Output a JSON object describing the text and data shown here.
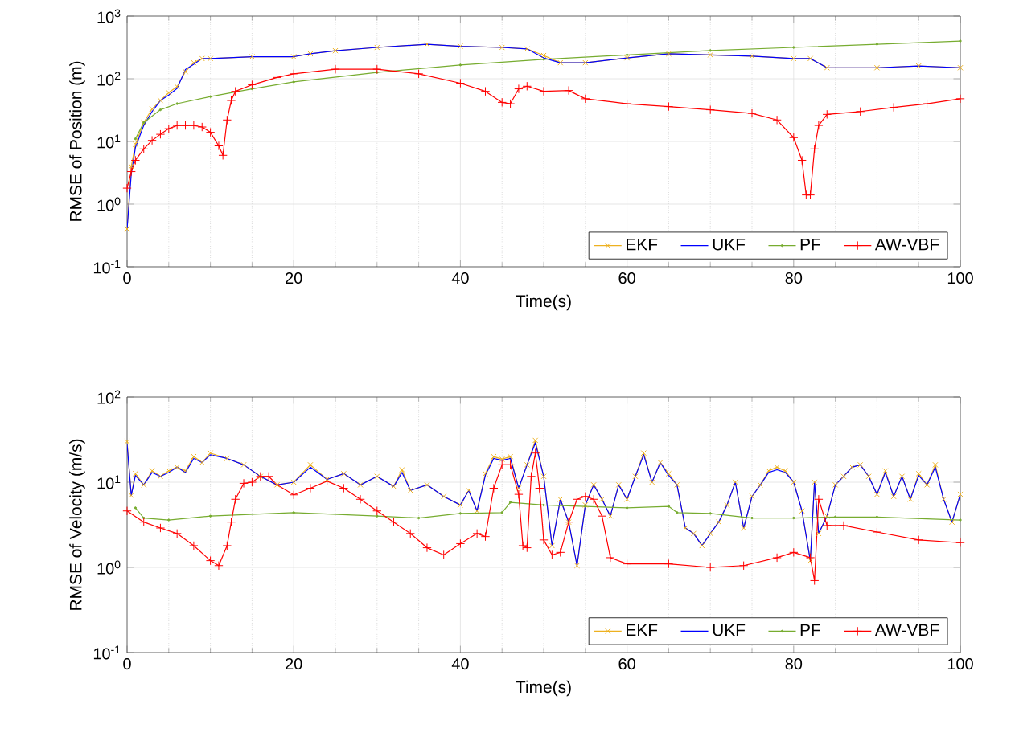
{
  "chart_data": [
    {
      "type": "line",
      "xlabel": "Time(s)",
      "ylabel": "RMSE of Position (m)",
      "log": "y",
      "grid": true,
      "legend": "bottom right",
      "xlim": [
        0,
        100
      ],
      "xticks": [
        0,
        20,
        40,
        60,
        80,
        100
      ],
      "ylim": [
        0.1,
        1000
      ],
      "yticks": [
        {
          "value": 0.1,
          "label": "10$^{-1}$"
        },
        {
          "value": 1,
          "label": "10$^{0}$"
        },
        {
          "value": 10,
          "label": "10$^{1}$"
        },
        {
          "value": 100,
          "label": "10$^{2}$"
        },
        {
          "value": 1000,
          "label": "10$^{3}$"
        }
      ],
      "series": [
        {
          "name": "EKF",
          "color": "#edb120",
          "marker": "cross",
          "x": [
            0,
            0.5,
            1,
            2,
            3,
            4,
            5,
            6,
            7,
            8,
            9,
            10,
            15,
            20,
            22,
            25,
            30,
            36,
            40,
            45,
            48,
            50,
            52,
            55,
            60,
            65,
            70,
            75,
            80,
            82,
            84,
            90,
            95,
            100
          ],
          "values": [
            0.4,
            4,
            9,
            20,
            33,
            45,
            60,
            75,
            130,
            180,
            210,
            210,
            225,
            225,
            250,
            280,
            316,
            355,
            330,
            316,
            300,
            235,
            180,
            180,
            215,
            250,
            240,
            230,
            210,
            210,
            150,
            150,
            160,
            150
          ]
        },
        {
          "name": "UKF",
          "color": "#0000ff",
          "marker": "none",
          "x": [
            0,
            0.5,
            1,
            2,
            3,
            4,
            5,
            6,
            7,
            8,
            9,
            10,
            15,
            20,
            22,
            25,
            30,
            36,
            40,
            45,
            48,
            50,
            52,
            55,
            60,
            65,
            70,
            75,
            80,
            82,
            84,
            90,
            95,
            100
          ],
          "values": [
            0.4,
            3,
            8,
            18,
            30,
            45,
            55,
            70,
            140,
            170,
            210,
            210,
            225,
            225,
            250,
            280,
            316,
            355,
            330,
            316,
            300,
            215,
            180,
            180,
            215,
            250,
            240,
            230,
            210,
            210,
            150,
            150,
            160,
            150
          ]
        },
        {
          "name": "PF",
          "color": "#77ac30",
          "marker": "circle",
          "x": [
            1,
            2,
            4,
            6,
            10,
            15,
            20,
            30,
            40,
            50,
            60,
            70,
            80,
            90,
            100
          ],
          "values": [
            11,
            20,
            32,
            40,
            52,
            69,
            89,
            126,
            166,
            204,
            240,
            282,
            316,
            355,
            400
          ]
        },
        {
          "name": "AW-VBF",
          "color": "#ff0000",
          "marker": "plus",
          "x": [
            0,
            0.5,
            1,
            2,
            3,
            4,
            5,
            6,
            7,
            8,
            9,
            10,
            11,
            11.5,
            12,
            12.5,
            13,
            15,
            18,
            20,
            25,
            30,
            35,
            40,
            43,
            45,
            46,
            47,
            48,
            50,
            53,
            55,
            60,
            65,
            70,
            75,
            78,
            80,
            81,
            81.5,
            82,
            82.5,
            83,
            84,
            88,
            92,
            96,
            100
          ],
          "values": [
            1.8,
            3.3,
            5,
            7.6,
            10.4,
            13,
            16,
            18,
            18,
            18,
            17,
            14,
            8.5,
            6,
            22,
            45,
            63,
            80,
            105,
            120,
            142,
            142,
            120,
            85,
            63,
            42,
            40,
            69,
            76,
            63,
            65,
            48,
            40,
            36,
            32,
            28,
            22,
            11.5,
            5,
            1.4,
            1.4,
            7.6,
            18,
            27,
            30,
            35,
            40,
            48
          ]
        }
      ]
    },
    {
      "type": "line",
      "xlabel": "Time(s)",
      "ylabel": "RMSE of Velocity (m/s)",
      "log": "y",
      "grid": true,
      "legend": "bottom right",
      "xlim": [
        0,
        100
      ],
      "xticks": [
        0,
        20,
        40,
        60,
        80,
        100
      ],
      "ylim": [
        0.1,
        100
      ],
      "yticks": [
        {
          "value": 0.1,
          "label": "10$^{-1}$"
        },
        {
          "value": 1,
          "label": "10$^{0}$"
        },
        {
          "value": 10,
          "label": "10$^{1}$"
        },
        {
          "value": 100,
          "label": "10$^{2}$"
        }
      ],
      "series": [
        {
          "name": "EKF",
          "color": "#edb120",
          "marker": "cross",
          "x": [
            0,
            0.5,
            1,
            2,
            3,
            4,
            5,
            6,
            7,
            8,
            9,
            10,
            12,
            14,
            16,
            18,
            20,
            22,
            24,
            26,
            28,
            30,
            32,
            33,
            34,
            36,
            38,
            40,
            41,
            42,
            43,
            44,
            45,
            46,
            47,
            48,
            49,
            50,
            51,
            52,
            53,
            54,
            55,
            56,
            57,
            58,
            59,
            60,
            61,
            62,
            63,
            64,
            65,
            66,
            67,
            68,
            69,
            70,
            71,
            72,
            73,
            74,
            75,
            76,
            77,
            78,
            79,
            80,
            81,
            82,
            82.5,
            83,
            84,
            85,
            86,
            87,
            88,
            89,
            90,
            91,
            92,
            93,
            94,
            95,
            96,
            97,
            98,
            99,
            100
          ],
          "values": [
            30,
            7,
            12.6,
            9.3,
            13.6,
            11.7,
            13.6,
            15,
            13.6,
            20,
            17,
            22,
            19,
            16,
            11.7,
            9.3,
            10,
            16,
            10.8,
            12.6,
            9.3,
            11.7,
            8.9,
            14,
            8,
            9.3,
            6.8,
            5.4,
            8,
            4.6,
            12.6,
            20,
            18.6,
            20,
            8.5,
            16,
            31,
            11.7,
            1.8,
            6.3,
            3.4,
            1.05,
            5.4,
            9.3,
            6.3,
            4,
            9.3,
            6.3,
            11.7,
            22,
            10,
            17,
            12.6,
            9.3,
            2.9,
            2.5,
            1.8,
            2.5,
            3.4,
            5.4,
            10,
            2.9,
            6.8,
            9.3,
            13.6,
            15,
            13.6,
            10,
            4.6,
            1.2,
            10,
            2.5,
            4,
            9.3,
            11.7,
            15,
            16,
            11.7,
            7.2,
            13.6,
            6.8,
            11.7,
            6.3,
            12.6,
            9.3,
            16,
            6.3,
            3.4,
            7.2
          ]
        },
        {
          "name": "UKF",
          "color": "#0000ff",
          "marker": "none",
          "x": [
            0,
            0.5,
            1,
            2,
            3,
            4,
            5,
            6,
            7,
            8,
            9,
            10,
            12,
            14,
            16,
            18,
            20,
            22,
            24,
            26,
            28,
            30,
            32,
            33,
            34,
            36,
            38,
            40,
            41,
            42,
            43,
            44,
            45,
            46,
            47,
            48,
            49,
            50,
            51,
            52,
            53,
            54,
            55,
            56,
            57,
            58,
            59,
            60,
            61,
            62,
            63,
            64,
            65,
            66,
            67,
            68,
            69,
            70,
            71,
            72,
            73,
            74,
            75,
            76,
            77,
            78,
            79,
            80,
            81,
            82,
            82.5,
            83,
            84,
            85,
            86,
            87,
            88,
            89,
            90,
            91,
            92,
            93,
            94,
            95,
            96,
            97,
            98,
            99,
            100
          ],
          "values": [
            28,
            7,
            12,
            9.3,
            13,
            11.7,
            13,
            15,
            13,
            19,
            17,
            21,
            19,
            16,
            11.7,
            9.3,
            10,
            15,
            10.8,
            12.6,
            9.3,
            11.7,
            8.9,
            13,
            8,
            9.3,
            6.8,
            5.4,
            8,
            4.6,
            12,
            19,
            18,
            19,
            8.5,
            16,
            29,
            11.7,
            1.8,
            6.3,
            3.4,
            1.05,
            5.4,
            9.3,
            6.3,
            4,
            9.3,
            6.3,
            11.7,
            21,
            10,
            17,
            12,
            9.3,
            2.9,
            2.5,
            1.8,
            2.5,
            3.4,
            5.4,
            10,
            2.9,
            6.8,
            9.3,
            13,
            14,
            13,
            10,
            4.6,
            1.2,
            10,
            2.5,
            4,
            9.3,
            11.7,
            15,
            16,
            11.7,
            7.2,
            13,
            6.8,
            11.7,
            6.3,
            12,
            9.3,
            15,
            6.3,
            3.4,
            7.2
          ]
        },
        {
          "name": "PF",
          "color": "#77ac30",
          "marker": "circle",
          "x": [
            1,
            2,
            5,
            10,
            20,
            30,
            35,
            40,
            45,
            46,
            50,
            55,
            60,
            65,
            66,
            70,
            75,
            80,
            85,
            90,
            100
          ],
          "values": [
            5,
            3.8,
            3.6,
            4,
            4.4,
            4,
            3.8,
            4.3,
            4.4,
            5.8,
            5.4,
            5.2,
            5,
            5.2,
            4.4,
            4.3,
            3.8,
            3.8,
            3.9,
            3.9,
            3.6
          ]
        },
        {
          "name": "AW-VBF",
          "color": "#ff0000",
          "marker": "plus",
          "x": [
            0,
            2,
            4,
            6,
            8,
            10,
            11,
            12,
            12.5,
            13,
            14,
            15,
            16,
            17,
            18,
            20,
            22,
            24,
            26,
            28,
            30,
            32,
            34,
            36,
            38,
            40,
            42,
            43,
            44,
            45,
            46,
            47,
            47.5,
            48,
            48.5,
            49,
            49.5,
            50,
            51,
            52,
            53,
            54,
            55,
            56,
            57,
            58,
            60,
            65,
            70,
            74,
            78,
            80,
            82,
            82.5,
            83,
            84,
            86,
            90,
            95,
            100
          ],
          "values": [
            4.6,
            3.4,
            2.9,
            2.5,
            1.8,
            1.2,
            1.05,
            1.8,
            3.4,
            6.3,
            9.7,
            10,
            11.7,
            11.7,
            9.3,
            7.1,
            8.5,
            10.3,
            8.5,
            6.3,
            4.6,
            3.4,
            2.5,
            1.7,
            1.4,
            1.9,
            2.5,
            2.3,
            8.5,
            16,
            16,
            7.2,
            1.8,
            1.7,
            11.7,
            22,
            8.5,
            2.1,
            1.4,
            1.5,
            3.4,
            6.3,
            6.8,
            6.3,
            4,
            1.3,
            1.1,
            1.1,
            1,
            1.05,
            1.3,
            1.5,
            1.3,
            0.7,
            6.3,
            3.1,
            3.1,
            2.6,
            2.1,
            1.95
          ]
        }
      ]
    }
  ]
}
